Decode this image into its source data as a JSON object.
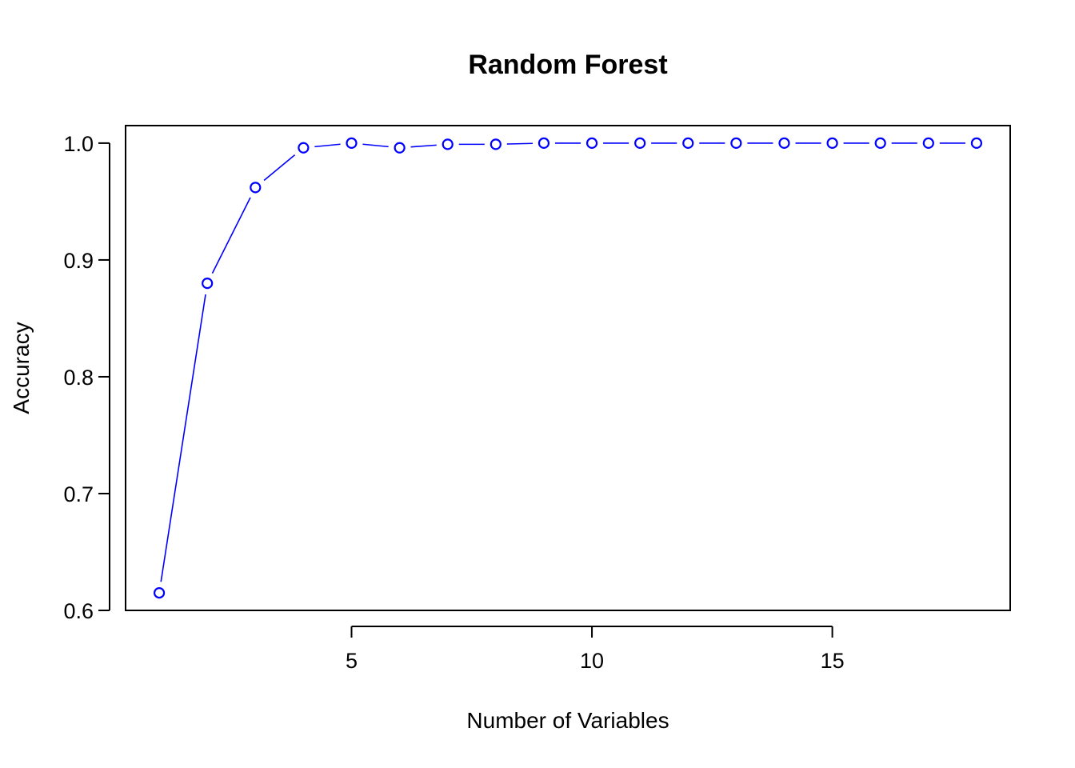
{
  "chart_data": {
    "type": "line",
    "title": "Random Forest",
    "xlabel": "Number of Variables",
    "ylabel": "Accuracy",
    "xlim": [
      0.3,
      18.7
    ],
    "ylim": [
      0.6,
      1.015
    ],
    "x_ticks": [
      5,
      10,
      15
    ],
    "y_ticks": [
      0.6,
      0.7,
      0.8,
      0.9,
      1.0
    ],
    "x_tick_labels": [
      "5",
      "10",
      "15"
    ],
    "y_tick_labels": [
      "0.6",
      "0.7",
      "0.8",
      "0.9",
      "1.0"
    ],
    "grid": false,
    "legend": "none",
    "marker": "open-circle",
    "color": "#0000ff",
    "series": [
      {
        "x": [
          1,
          2,
          3,
          4,
          5,
          6,
          7,
          8,
          9,
          10,
          11,
          12,
          13,
          14,
          15,
          16,
          17,
          18
        ],
        "values": [
          0.615,
          0.88,
          0.962,
          0.996,
          1.0,
          0.996,
          0.999,
          0.999,
          1.0,
          1.0,
          1.0,
          1.0,
          1.0,
          1.0,
          1.0,
          1.0,
          1.0,
          1.0
        ]
      }
    ]
  }
}
